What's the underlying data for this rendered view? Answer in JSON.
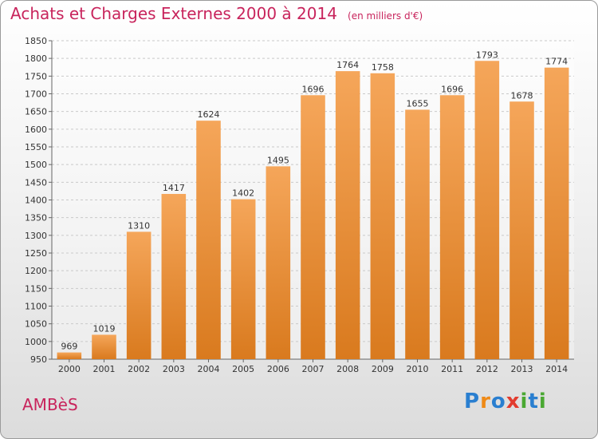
{
  "title": "Achats et Charges Externes 2000 à 2014",
  "subtitle": "(en milliers d'€)",
  "commune": "AMBèS",
  "logo": {
    "letters": [
      "P",
      "r",
      "o",
      "x",
      "i",
      "t",
      "i"
    ],
    "colors": [
      "#2a7fd0",
      "#ef8a17",
      "#2a7fd0",
      "#e23c2f",
      "#4aa832",
      "#2a7fd0",
      "#4aa832"
    ]
  },
  "colors": {
    "bar_top": "#f5a65a",
    "bar_bottom": "#d97a1e",
    "accent": "#c8245c",
    "grid": "#c9c9c9"
  },
  "chart_data": {
    "type": "bar",
    "categories": [
      "2000",
      "2001",
      "2002",
      "2003",
      "2004",
      "2005",
      "2006",
      "2007",
      "2008",
      "2009",
      "2010",
      "2011",
      "2012",
      "2013",
      "2014"
    ],
    "values": [
      969,
      1019,
      1310,
      1417,
      1624,
      1402,
      1495,
      1696,
      1764,
      1758,
      1655,
      1696,
      1793,
      1678,
      1774
    ],
    "ylim": [
      950,
      1850
    ],
    "yticks": [
      950,
      1000,
      1050,
      1100,
      1150,
      1200,
      1250,
      1300,
      1350,
      1400,
      1450,
      1500,
      1550,
      1600,
      1650,
      1700,
      1750,
      1800,
      1850
    ],
    "grid": true,
    "xlabel": "",
    "ylabel": ""
  }
}
